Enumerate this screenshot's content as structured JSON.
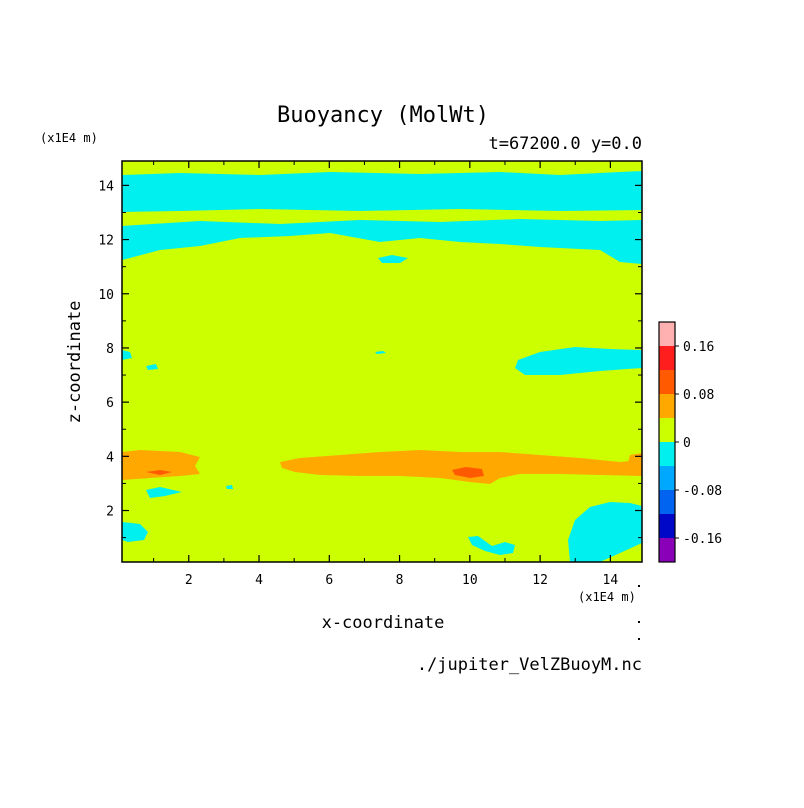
{
  "chart_data": {
    "type": "heatmap",
    "title": "Buoyancy (MolWt)",
    "subtitle": "t=67200.0 y=0.0",
    "xlabel": "x-coordinate",
    "ylabel": "z-coordinate",
    "x_unit": "(x1E4 m)",
    "y_unit": "(x1E4 m)",
    "xlim": [
      0.1,
      14.9
    ],
    "ylim": [
      0.1,
      14.9
    ],
    "x_ticks": [
      2,
      4,
      6,
      8,
      10,
      12,
      14
    ],
    "y_ticks": [
      2,
      4,
      6,
      8,
      10,
      12,
      14
    ],
    "colorbar": {
      "levels": [
        -0.2,
        -0.16,
        -0.12,
        -0.08,
        -0.04,
        0,
        0.04,
        0.08,
        0.12,
        0.16,
        0.2
      ],
      "colors": [
        "#8a00b8",
        "#0008c8",
        "#0064f0",
        "#00a8ff",
        "#00f0f0",
        "#ccff00",
        "#ffa800",
        "#ff5a00",
        "#ff1e1e",
        "#ffb0b0"
      ],
      "tick_values": [
        -0.16,
        -0.08,
        0,
        0.08,
        0.16
      ],
      "tick_labels": [
        "-0.16",
        "-0.08",
        "0",
        "0.08",
        "0.16"
      ]
    },
    "regions": [
      {
        "level": "negative",
        "color": "#00f0f0",
        "x": [
          0.1,
          14.9
        ],
        "z": [
          13.1,
          14.6
        ]
      },
      {
        "level": "negative",
        "color": "#00f0f0",
        "x": [
          0.1,
          14.9
        ],
        "z": [
          11.2,
          12.7
        ]
      },
      {
        "level": "negative",
        "color": "#00f0f0",
        "x": [
          10.5,
          14.9
        ],
        "z": [
          7.3,
          8.0
        ]
      },
      {
        "level": "negative",
        "color": "#00f0f0",
        "x": [
          12.5,
          14.9
        ],
        "z": [
          0.1,
          1.8
        ]
      },
      {
        "level": "negative",
        "color": "#00f0f0",
        "x": [
          0.1,
          0.8
        ],
        "z": [
          0.8,
          1.8
        ]
      },
      {
        "level": "positive",
        "color": "#ffa800",
        "x": [
          0.1,
          2.2
        ],
        "z": [
          3.1,
          3.9
        ]
      },
      {
        "level": "positive",
        "color": "#ffa800",
        "x": [
          4.6,
          14.9
        ],
        "z": [
          3.1,
          4.2
        ]
      },
      {
        "level": "peak",
        "color": "#ff5a00",
        "x": [
          0.8,
          1.5
        ],
        "z": [
          3.3,
          3.5
        ]
      },
      {
        "level": "peak",
        "color": "#ff5a00",
        "x": [
          9.5,
          10.4
        ],
        "z": [
          3.2,
          3.5
        ]
      }
    ]
  },
  "source_file": "./jupiter_VelZBuoyM.nc"
}
